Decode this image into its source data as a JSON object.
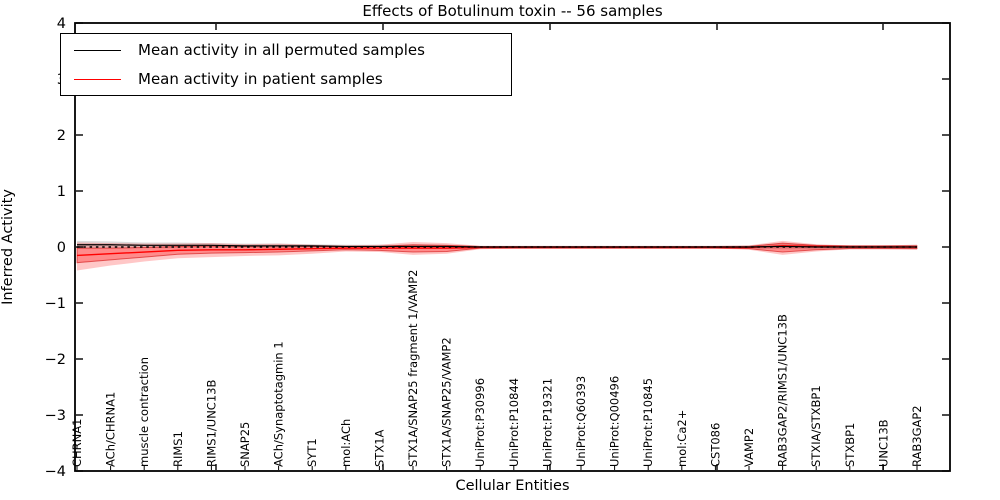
{
  "chart_data": {
    "type": "line",
    "title": "Effects of Botulinum toxin -- 56 samples",
    "xlabel": "Cellular Entities",
    "ylabel": "Inferred Activity",
    "ylim": [
      -4,
      4
    ],
    "yticks": [
      4,
      3,
      2,
      1,
      0,
      -1,
      -2,
      -3,
      -4
    ],
    "ytick_labels": [
      "4",
      "3",
      "2",
      "1",
      "0",
      "−1",
      "−2",
      "−3",
      "−4"
    ],
    "grid": false,
    "legend_position": "upper left",
    "categories": [
      "CHRNA1",
      "ACh/CHRNA1",
      "muscle contraction",
      "RIMS1",
      "RIMS1/UNC13B",
      "SNAP25",
      "ACh/Synaptotagmin 1",
      "SYT1",
      "mol:ACh",
      "STX1A",
      "STX1A/SNAP25 fragment 1/VAMP2",
      "STX1A/SNAP25/VAMP2",
      "UniProt:P30996",
      "UniProt:P10844",
      "UniProt:P19321",
      "UniProt:Q60393",
      "UniProt:Q00496",
      "UniProt:P10845",
      "mol:Ca2+",
      "CST086",
      "VAMP2",
      "RAB3GAP2/RIMS1/UNC13B",
      "STXIA/STXBP1",
      "STXBP1",
      "UNC13B",
      "RAB3GAP2"
    ],
    "zero_line": {
      "y": 0,
      "style": "dashed",
      "color": "#000000"
    },
    "series": [
      {
        "name": "Mean activity in all permuted samples",
        "color": "#000000",
        "band_color": "#999999",
        "values": [
          0.04,
          0.04,
          0.03,
          0.03,
          0.03,
          0.02,
          0.02,
          0.02,
          0.01,
          0.01,
          0.01,
          0.01,
          0,
          0,
          0,
          0,
          0,
          0,
          0,
          0,
          0,
          0.01,
          0,
          0,
          0,
          0
        ],
        "band_upper": [
          0.11,
          0.1,
          0.08,
          0.08,
          0.07,
          0.06,
          0.06,
          0.05,
          0.04,
          0.04,
          0.04,
          0.04,
          0.02,
          0.02,
          0.02,
          0.02,
          0.02,
          0.02,
          0.02,
          0.02,
          0.03,
          0.06,
          0.04,
          0.03,
          0.03,
          0.04
        ],
        "band_lower": [
          -0.03,
          -0.02,
          -0.02,
          -0.02,
          -0.01,
          -0.02,
          -0.02,
          -0.01,
          -0.02,
          -0.02,
          -0.02,
          -0.02,
          -0.02,
          -0.02,
          -0.02,
          -0.02,
          -0.02,
          -0.02,
          -0.02,
          -0.02,
          -0.03,
          -0.04,
          -0.04,
          -0.03,
          -0.03,
          -0.04
        ]
      },
      {
        "name": "Mean activity in patient samples",
        "color": "#ff0000",
        "band_color": "#ff0000",
        "values": [
          -0.15,
          -0.12,
          -0.09,
          -0.06,
          -0.05,
          -0.05,
          -0.04,
          -0.03,
          -0.02,
          -0.02,
          -0.02,
          -0.02,
          -0.01,
          -0.01,
          -0.01,
          -0.01,
          -0.01,
          -0.01,
          -0.01,
          -0.01,
          -0.01,
          0.02,
          0.01,
          0,
          0,
          0
        ],
        "band_upper": [
          0.08,
          0.07,
          0.06,
          0.06,
          0.07,
          0.05,
          0.06,
          0.04,
          0.03,
          0.04,
          0.09,
          0.07,
          0.02,
          0.02,
          0.02,
          0.02,
          0.02,
          0.02,
          0.02,
          0.02,
          0.03,
          0.11,
          0.05,
          0.03,
          0.03,
          0.04
        ],
        "band_lower": [
          -0.42,
          -0.33,
          -0.26,
          -0.2,
          -0.18,
          -0.16,
          -0.15,
          -0.12,
          -0.08,
          -0.09,
          -0.14,
          -0.12,
          -0.04,
          -0.03,
          -0.03,
          -0.03,
          -0.03,
          -0.03,
          -0.03,
          -0.03,
          -0.05,
          -0.14,
          -0.08,
          -0.04,
          -0.04,
          -0.05
        ],
        "band_inner_upper": [
          -0.02,
          -0.02,
          -0.01,
          0.01,
          0.02,
          0.01,
          0.02,
          0.01,
          0.01,
          0.01,
          0.04,
          0.03,
          0.01,
          0.01,
          0.01,
          0.01,
          0.01,
          0.01,
          0.01,
          0.01,
          0.01,
          0.07,
          0.03,
          0.02,
          0.02,
          0.02
        ],
        "band_inner_lower": [
          -0.28,
          -0.23,
          -0.18,
          -0.13,
          -0.11,
          -0.1,
          -0.09,
          -0.07,
          -0.05,
          -0.06,
          -0.09,
          -0.08,
          -0.02,
          -0.02,
          -0.02,
          -0.02,
          -0.02,
          -0.02,
          -0.02,
          -0.02,
          -0.03,
          -0.09,
          -0.05,
          -0.03,
          -0.03,
          -0.03
        ]
      }
    ]
  },
  "legend": {
    "entries": [
      {
        "label": "Mean activity in all permuted samples",
        "color": "#000000"
      },
      {
        "label": "Mean activity in patient samples",
        "color": "#ff0000"
      }
    ]
  }
}
